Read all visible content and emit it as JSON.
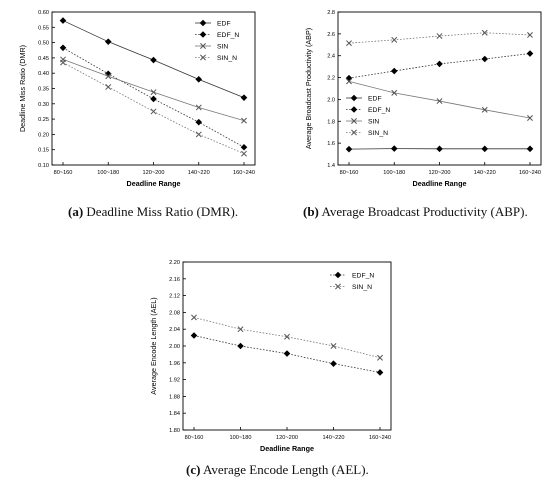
{
  "captions": [
    {
      "tag": "(a)",
      "text": "Deadline Miss Ratio (DMR)."
    },
    {
      "tag": "(b)",
      "text": "Average Broadcast Productivity (ABP)."
    },
    {
      "tag": "(c)",
      "text": "Average Encode Length (AEL)."
    }
  ],
  "chart_data": [
    {
      "type": "line",
      "title": "",
      "xlabel": "Deadline Range",
      "ylabel": "Deadline Miss Ratio (DMR)",
      "categories": [
        "80~160",
        "100~180",
        "120~200",
        "140~220",
        "160~240"
      ],
      "ylim": [
        0.1,
        0.6
      ],
      "yticks": [
        "0.10",
        "0.15",
        "0.20",
        "0.25",
        "0.30",
        "0.35",
        "0.40",
        "0.45",
        "0.50",
        "0.55",
        "0.60"
      ],
      "grid": false,
      "legend_position": "top-right",
      "series": [
        {
          "name": "EDF",
          "values": [
            0.572,
            0.503,
            0.443,
            0.38,
            0.32
          ],
          "marker": "diamond",
          "line": "solid"
        },
        {
          "name": "EDF_N",
          "values": [
            0.483,
            0.398,
            0.316,
            0.24,
            0.158
          ],
          "marker": "diamond",
          "line": "dotted"
        },
        {
          "name": "SIN",
          "values": [
            0.445,
            0.39,
            0.338,
            0.288,
            0.245
          ],
          "marker": "x",
          "line": "solid"
        },
        {
          "name": "SIN_N",
          "values": [
            0.435,
            0.355,
            0.275,
            0.2,
            0.137
          ],
          "marker": "x",
          "line": "dotted"
        }
      ]
    },
    {
      "type": "line",
      "title": "",
      "xlabel": "Deadline Range",
      "ylabel": "Average Broadcast Productivity (ABP)",
      "categories": [
        "80~160",
        "100~180",
        "120~200",
        "140~220",
        "160~240"
      ],
      "ylim": [
        1.4,
        2.8
      ],
      "yticks": [
        "1.4",
        "1.6",
        "1.8",
        "2.0",
        "2.2",
        "2.4",
        "2.6",
        "2.8"
      ],
      "grid": false,
      "legend_position": "left-middle",
      "series": [
        {
          "name": "EDF",
          "values": [
            1.545,
            1.55,
            1.548,
            1.548,
            1.548
          ],
          "marker": "diamond",
          "line": "solid"
        },
        {
          "name": "EDF_N",
          "values": [
            2.195,
            2.26,
            2.325,
            2.37,
            2.42
          ],
          "marker": "diamond",
          "line": "dotted"
        },
        {
          "name": "SIN",
          "values": [
            2.165,
            2.06,
            1.985,
            1.905,
            1.83
          ],
          "marker": "x",
          "line": "solid"
        },
        {
          "name": "SIN_N",
          "values": [
            2.515,
            2.545,
            2.58,
            2.61,
            2.59
          ],
          "marker": "x",
          "line": "dotted"
        }
      ]
    },
    {
      "type": "line",
      "title": "",
      "xlabel": "Deadline Range",
      "ylabel": "Average Encode Length (AEL)",
      "categories": [
        "80~160",
        "100~180",
        "120~200",
        "140~220",
        "160~240"
      ],
      "ylim": [
        1.8,
        2.2
      ],
      "yticks": [
        "1.80",
        "1.84",
        "1.88",
        "1.92",
        "1.96",
        "2.00",
        "2.04",
        "2.08",
        "2.12",
        "2.16",
        "2.20"
      ],
      "grid": false,
      "legend_position": "top-right",
      "series": [
        {
          "name": "EDF_N",
          "values": [
            2.025,
            2.0,
            1.982,
            1.958,
            1.937
          ],
          "marker": "diamond",
          "line": "dotted"
        },
        {
          "name": "SIN_N",
          "values": [
            2.068,
            2.04,
            2.022,
            2.0,
            1.972
          ],
          "marker": "x",
          "line": "dotted"
        }
      ]
    }
  ]
}
